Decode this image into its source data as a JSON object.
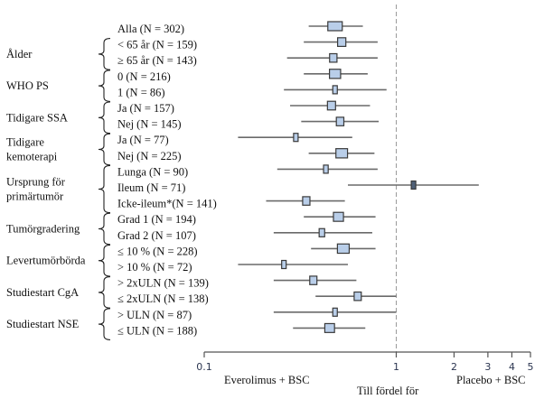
{
  "chart_data": {
    "type": "forest",
    "xscale": "log",
    "xlim": [
      0.1,
      5
    ],
    "xticks": [
      0.1,
      1,
      2,
      3,
      4,
      5
    ],
    "xtick_labels": [
      "0.1",
      "1",
      "2",
      "3",
      "4",
      "5"
    ],
    "reference_line": 1,
    "left_label": "Everolimus + BSC",
    "right_label": "Placebo + BSC",
    "xlabel": "Till fördel för",
    "groups": [
      {
        "name": "Ålder",
        "lines": [
          "Ålder"
        ],
        "rows": [
          1,
          2
        ]
      },
      {
        "name": "WHO PS",
        "lines": [
          "WHO PS"
        ],
        "rows": [
          3,
          4
        ]
      },
      {
        "name": "Tidigare SSA",
        "lines": [
          "Tidigare SSA"
        ],
        "rows": [
          5,
          6
        ]
      },
      {
        "name": "Tidigare kemoterapi",
        "lines": [
          "Tidigare",
          "kemoterapi"
        ],
        "rows": [
          7,
          8
        ]
      },
      {
        "name": "Ursprung för primärtumör",
        "lines": [
          "Ursprung för",
          "primärtumör"
        ],
        "rows": [
          9,
          10,
          11
        ]
      },
      {
        "name": "Tumörgradering",
        "lines": [
          "Tumörgradering"
        ],
        "rows": [
          12,
          13
        ]
      },
      {
        "name": "Levertumörbörda",
        "lines": [
          "Levertumörbörda"
        ],
        "rows": [
          14,
          15
        ]
      },
      {
        "name": "Studiestart CgA",
        "lines": [
          "Studiestart CgA"
        ],
        "rows": [
          16,
          17
        ]
      },
      {
        "name": "Studiestart NSE",
        "lines": [
          "Studiestart NSE"
        ],
        "rows": [
          18,
          19
        ]
      }
    ],
    "rows": [
      {
        "label": "Alla (N = 302)",
        "n": 302,
        "hr": 0.48,
        "lo": 0.35,
        "hi": 0.67
      },
      {
        "label": "< 65 år (N = 159)",
        "n": 159,
        "hr": 0.52,
        "lo": 0.33,
        "hi": 0.8
      },
      {
        "label": "≥ 65 år (N = 143)",
        "n": 143,
        "hr": 0.47,
        "lo": 0.27,
        "hi": 0.8
      },
      {
        "label": "0 (N = 216)",
        "n": 216,
        "hr": 0.48,
        "lo": 0.33,
        "hi": 0.71
      },
      {
        "label": "1 (N = 86)",
        "n": 86,
        "hr": 0.48,
        "lo": 0.26,
        "hi": 0.89
      },
      {
        "label": "Ja (N = 157)",
        "n": 157,
        "hr": 0.46,
        "lo": 0.28,
        "hi": 0.73
      },
      {
        "label": "Nej (N = 145)",
        "n": 145,
        "hr": 0.51,
        "lo": 0.32,
        "hi": 0.81
      },
      {
        "label": "Ja (N = 77)",
        "n": 77,
        "hr": 0.3,
        "lo": 0.15,
        "hi": 0.59
      },
      {
        "label": "Nej (N = 225)",
        "n": 225,
        "hr": 0.52,
        "lo": 0.35,
        "hi": 0.77
      },
      {
        "label": "Lunga (N = 90)",
        "n": 90,
        "hr": 0.43,
        "lo": 0.24,
        "hi": 0.8
      },
      {
        "label": "Ileum (N = 71)",
        "n": 71,
        "hr": 1.23,
        "lo": 0.56,
        "hi": 2.69
      },
      {
        "label": "Icke-ileum*(N = 141)",
        "n": 141,
        "hr": 0.34,
        "lo": 0.21,
        "hi": 0.54
      },
      {
        "label": "Grad 1 (N = 194)",
        "n": 194,
        "hr": 0.5,
        "lo": 0.33,
        "hi": 0.78
      },
      {
        "label": "Grad 2 (N = 107)",
        "n": 107,
        "hr": 0.41,
        "lo": 0.23,
        "hi": 0.75
      },
      {
        "label": "≤ 10 % (N = 228)",
        "n": 228,
        "hr": 0.53,
        "lo": 0.36,
        "hi": 0.78
      },
      {
        "label": "> 10 % (N = 72)",
        "n": 72,
        "hr": 0.26,
        "lo": 0.15,
        "hi": 0.56
      },
      {
        "label": "> 2xULN (N = 139)",
        "n": 139,
        "hr": 0.37,
        "lo": 0.23,
        "hi": 0.62
      },
      {
        "label": "≤ 2xULN (N = 138)",
        "n": 138,
        "hr": 0.63,
        "lo": 0.38,
        "hi": 1.0
      },
      {
        "label": "> ULN (N = 87)",
        "n": 87,
        "hr": 0.48,
        "lo": 0.23,
        "hi": 1.0
      },
      {
        "label": "≤ ULN (N = 188)",
        "n": 188,
        "hr": 0.45,
        "lo": 0.29,
        "hi": 0.69
      }
    ],
    "colors": {
      "box_fill": "#b9cee9",
      "box_fill_dark": "#4f6078",
      "box_stroke": "#3a3a3a",
      "ci_line": "#6a6a6a",
      "ref_line": "#9a9a9a",
      "axis": "#555555"
    }
  }
}
